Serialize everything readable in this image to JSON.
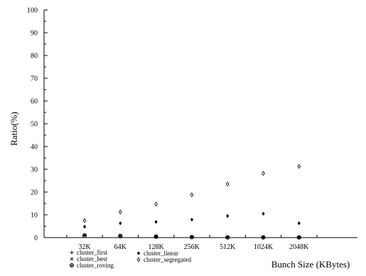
{
  "chart_data": {
    "type": "scatter",
    "title": "",
    "xlabel": "Bunch Size (KBytes)",
    "ylabel": "Ratio(%)",
    "categories": [
      "32K",
      "64K",
      "128K",
      "256K",
      "512K",
      "1024K",
      "2048K"
    ],
    "ylim": [
      0,
      100
    ],
    "yticks": [
      0,
      10,
      20,
      30,
      40,
      50,
      60,
      70,
      80,
      90,
      100
    ],
    "grid": false,
    "legend_position": "bottom-left",
    "series": [
      {
        "name": "cluster_first",
        "marker": "plus",
        "values": [
          1.0,
          0.8,
          0.5,
          0.3,
          0.1,
          0.1,
          0.1
        ]
      },
      {
        "name": "cluster_best",
        "marker": "cross",
        "values": [
          1.2,
          1.0,
          0.6,
          0.3,
          0.1,
          0.1,
          0.1
        ]
      },
      {
        "name": "cluster_roving",
        "marker": "circle-plus",
        "values": [
          0.8,
          0.6,
          0.4,
          0.2,
          0.1,
          0.1,
          0.1
        ]
      },
      {
        "name": "cluster_linear",
        "marker": "filled-diamond",
        "values": [
          4.8,
          6.3,
          6.9,
          7.9,
          9.5,
          10.5,
          6.3
        ]
      },
      {
        "name": "cluster_segregated",
        "marker": "open-diamond",
        "values": [
          7.5,
          11.3,
          14.7,
          18.8,
          23.5,
          28.2,
          31.3
        ]
      }
    ]
  }
}
